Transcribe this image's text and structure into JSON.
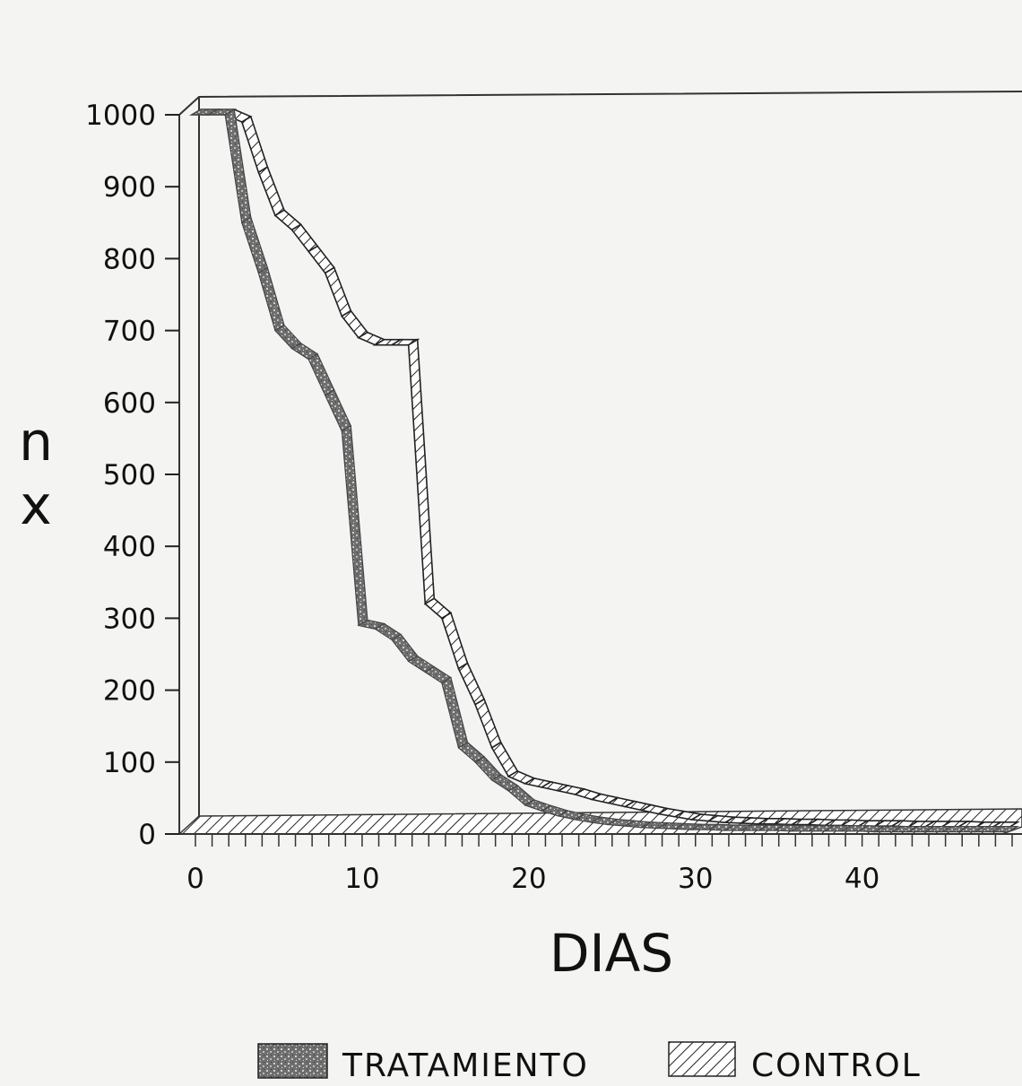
{
  "chart_data": {
    "type": "line",
    "title": "",
    "xlabel": "DIAS",
    "ylabel": [
      "n",
      "x"
    ],
    "xlim": [
      0,
      49
    ],
    "ylim": [
      0,
      1000
    ],
    "x_ticks": [
      "0",
      "10",
      "20",
      "30",
      "40"
    ],
    "y_ticks": [
      "0",
      "100",
      "200",
      "300",
      "400",
      "500",
      "600",
      "700",
      "800",
      "900",
      "1000"
    ],
    "grid": false,
    "legend_position": "bottom",
    "series": [
      {
        "name": "TRATAMIENTO",
        "color": "#777777",
        "pattern": "speckled",
        "x": [
          0,
          1,
          2,
          3,
          4,
          5,
          6,
          7,
          8,
          9,
          10,
          11,
          12,
          13,
          14,
          15,
          16,
          17,
          18,
          19,
          20,
          21,
          22,
          23,
          24,
          25,
          26,
          27,
          28,
          29,
          30,
          31,
          32,
          33,
          34,
          35,
          36,
          37,
          38,
          39,
          40,
          41,
          42,
          43,
          44,
          45,
          46,
          47,
          48,
          49
        ],
        "values": [
          1000,
          1000,
          1000,
          850,
          780,
          700,
          675,
          660,
          610,
          560,
          290,
          285,
          270,
          240,
          225,
          210,
          120,
          100,
          75,
          60,
          40,
          32,
          25,
          20,
          16,
          13,
          11,
          9,
          8,
          7,
          6,
          6,
          5,
          5,
          5,
          5,
          4,
          4,
          4,
          4,
          4,
          3,
          3,
          3,
          3,
          3,
          3,
          3,
          3,
          3
        ]
      },
      {
        "name": "CONTROL",
        "color": "#555555",
        "pattern": "hatched",
        "x": [
          0,
          1,
          2,
          3,
          4,
          5,
          6,
          7,
          8,
          9,
          10,
          11,
          12,
          13,
          14,
          15,
          16,
          17,
          18,
          19,
          20,
          21,
          22,
          23,
          24,
          25,
          26,
          27,
          28,
          29,
          30,
          31,
          32,
          33,
          34,
          35,
          36,
          37,
          38,
          39,
          40,
          41,
          42,
          43,
          44,
          45,
          46,
          47,
          48,
          49
        ],
        "values": [
          1000,
          1000,
          1000,
          990,
          920,
          860,
          840,
          810,
          780,
          720,
          690,
          680,
          680,
          680,
          320,
          300,
          230,
          180,
          120,
          80,
          70,
          65,
          60,
          55,
          48,
          43,
          38,
          33,
          28,
          24,
          20,
          18,
          16,
          15,
          14,
          14,
          13,
          13,
          12,
          12,
          11,
          11,
          11,
          10,
          10,
          10,
          10,
          9,
          9,
          9
        ]
      }
    ]
  }
}
